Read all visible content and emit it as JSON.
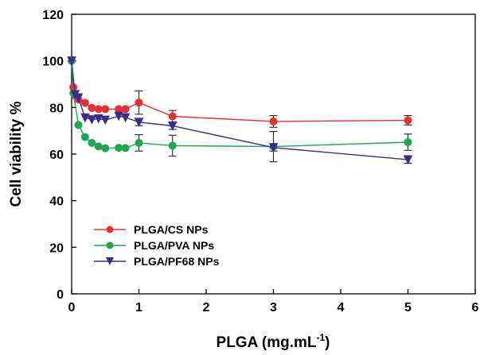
{
  "chart_data": {
    "type": "scatter",
    "xlabel": "PLGA (mg.mL",
    "xlabel_sup": "-1",
    "xlabel_close": ")",
    "ylabel": "Cell viability %",
    "xlim": [
      0,
      6
    ],
    "ylim": [
      0,
      120
    ],
    "x_ticks": [
      0,
      1,
      2,
      3,
      4,
      5,
      6
    ],
    "y_ticks": [
      0,
      20,
      40,
      60,
      80,
      100,
      120
    ],
    "x_tick_labels": [
      "0",
      "1",
      "2",
      "3",
      "4",
      "5",
      "6"
    ],
    "y_tick_labels": [
      "0",
      "20",
      "40",
      "60",
      "80",
      "100",
      "120"
    ],
    "legend_position": "lower-left",
    "series": [
      {
        "name": "PLGA/CS NPs",
        "color": "#e8312f",
        "marker": "circle",
        "points": [
          {
            "x": 0,
            "y": 100,
            "err": 0
          },
          {
            "x": 0.025,
            "y": 88.7,
            "err": 0
          },
          {
            "x": 0.05,
            "y": 85.2,
            "err": 0
          },
          {
            "x": 0.1,
            "y": 83.4,
            "err": 0
          },
          {
            "x": 0.2,
            "y": 82.0,
            "err": 0
          },
          {
            "x": 0.3,
            "y": 79.8,
            "err": 0
          },
          {
            "x": 0.4,
            "y": 79.3,
            "err": 0
          },
          {
            "x": 0.5,
            "y": 79.3,
            "err": 0
          },
          {
            "x": 0.7,
            "y": 79.3,
            "err": 0
          },
          {
            "x": 0.8,
            "y": 79.3,
            "err": 0
          },
          {
            "x": 1,
            "y": 82.1,
            "err": 5
          },
          {
            "x": 1.5,
            "y": 76.2,
            "err": 2.5
          },
          {
            "x": 3,
            "y": 74.0,
            "err": 2.5
          },
          {
            "x": 5,
            "y": 74.5,
            "err": 2
          }
        ]
      },
      {
        "name": "PLGA/PVA NPs",
        "color": "#1da84f",
        "marker": "circle",
        "points": [
          {
            "x": 0,
            "y": 100,
            "err": 0
          },
          {
            "x": 0.025,
            "y": 86.2,
            "err": 0
          },
          {
            "x": 0.1,
            "y": 72.5,
            "err": 0
          },
          {
            "x": 0.2,
            "y": 67.3,
            "err": 0
          },
          {
            "x": 0.3,
            "y": 64.8,
            "err": 0
          },
          {
            "x": 0.4,
            "y": 63.3,
            "err": 0
          },
          {
            "x": 0.5,
            "y": 62.5,
            "err": 0
          },
          {
            "x": 0.7,
            "y": 62.7,
            "err": 0
          },
          {
            "x": 0.8,
            "y": 62.6,
            "err": 0
          },
          {
            "x": 1,
            "y": 64.8,
            "err": 3.5
          },
          {
            "x": 1.5,
            "y": 63.6,
            "err": 4.5
          },
          {
            "x": 3,
            "y": 63.2,
            "err": 6.5
          },
          {
            "x": 5,
            "y": 65.1,
            "err": 3.5
          }
        ]
      },
      {
        "name": "PLGA/PF68 NPs",
        "color": "#3b2c8a",
        "marker": "triangle-down",
        "points": [
          {
            "x": 0,
            "y": 100,
            "err": 0
          },
          {
            "x": 0.05,
            "y": 85.6,
            "err": 0
          },
          {
            "x": 0.1,
            "y": 84.2,
            "err": 0
          },
          {
            "x": 0.2,
            "y": 75.6,
            "err": 0
          },
          {
            "x": 0.3,
            "y": 74.8,
            "err": 0
          },
          {
            "x": 0.4,
            "y": 75.2,
            "err": 0
          },
          {
            "x": 0.5,
            "y": 74.6,
            "err": 0
          },
          {
            "x": 0.7,
            "y": 76.3,
            "err": 0
          },
          {
            "x": 0.8,
            "y": 75.7,
            "err": 0
          },
          {
            "x": 1,
            "y": 73.7,
            "err": 1.5
          },
          {
            "x": 1.5,
            "y": 72.1,
            "err": 1.5
          },
          {
            "x": 3,
            "y": 62.8,
            "err": 1.5
          },
          {
            "x": 5,
            "y": 57.6,
            "err": 1.5
          }
        ]
      }
    ]
  }
}
